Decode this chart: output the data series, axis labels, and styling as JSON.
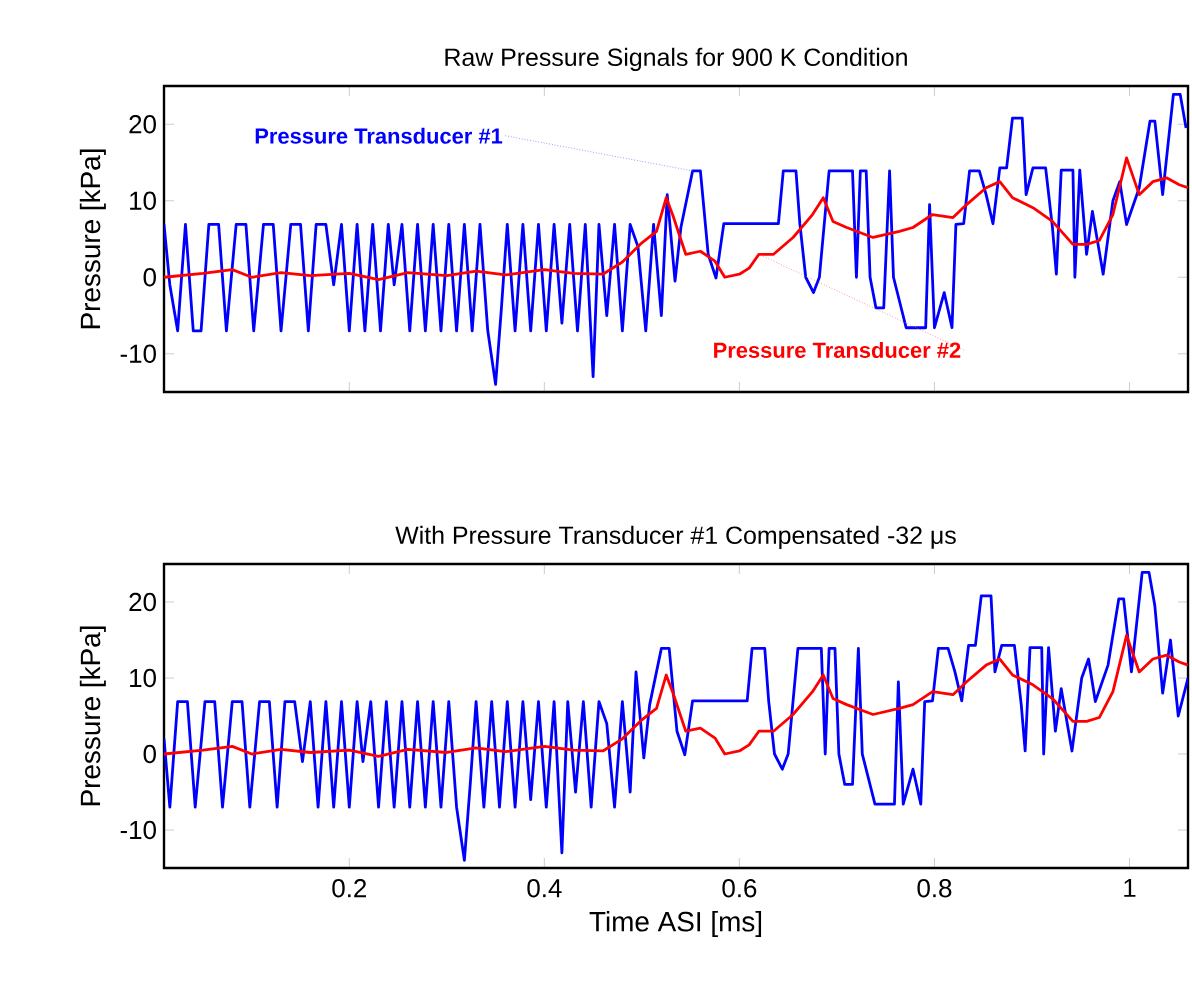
{
  "chart_data": [
    {
      "type": "line",
      "title": "Raw Pressure Signals for 900 K Condition",
      "ylabel": "Pressure [kPa]",
      "xlim": [
        0.01,
        1.06
      ],
      "ylim": [
        -15,
        25
      ],
      "xticks": [
        0.2,
        0.4,
        0.6,
        0.8,
        1
      ],
      "yticks": [
        -10,
        0,
        10,
        20
      ],
      "tick_labels": "y",
      "series": [
        {
          "name": "Pressure Transducer #1",
          "color": "#0000ff",
          "x": [
            0.01,
            0.016,
            0.024,
            0.032,
            0.04,
            0.048,
            0.056,
            0.066,
            0.074,
            0.084,
            0.094,
            0.102,
            0.112,
            0.122,
            0.13,
            0.14,
            0.15,
            0.158,
            0.166,
            0.176,
            0.184,
            0.192,
            0.2,
            0.208,
            0.216,
            0.224,
            0.232,
            0.24,
            0.246,
            0.254,
            0.262,
            0.27,
            0.278,
            0.286,
            0.294,
            0.302,
            0.31,
            0.318,
            0.326,
            0.334,
            0.342,
            0.35,
            0.356,
            0.362,
            0.37,
            0.378,
            0.386,
            0.394,
            0.402,
            0.41,
            0.418,
            0.426,
            0.434,
            0.442,
            0.45,
            0.456,
            0.464,
            0.472,
            0.48,
            0.488,
            0.496,
            0.504,
            0.512,
            0.52,
            0.526,
            0.534,
            0.54,
            0.552,
            0.56,
            0.568,
            0.576,
            0.584,
            0.64,
            0.645,
            0.658,
            0.662,
            0.668,
            0.676,
            0.682,
            0.692,
            0.716,
            0.72,
            0.724,
            0.73,
            0.734,
            0.74,
            0.748,
            0.754,
            0.758,
            0.771,
            0.791,
            0.795,
            0.8,
            0.81,
            0.818,
            0.822,
            0.83,
            0.836,
            0.846,
            0.853,
            0.86,
            0.867,
            0.874,
            0.88,
            0.89,
            0.894,
            0.901,
            0.914,
            0.921,
            0.925,
            0.93,
            0.942,
            0.944,
            0.949,
            0.956,
            0.962,
            0.973,
            0.983,
            0.99,
            0.997,
            1.01,
            1.021,
            1.026,
            1.034,
            1.045,
            1.052,
            1.058
          ],
          "values": [
            6.9,
            -1,
            -7,
            6.9,
            -7,
            -7,
            6.9,
            6.9,
            -7,
            6.9,
            6.9,
            -7,
            6.9,
            6.9,
            -7,
            6.9,
            6.9,
            -7,
            6.9,
            6.9,
            -1,
            6.9,
            -7,
            6.9,
            -7,
            6.9,
            -7,
            6.9,
            -1,
            6.9,
            -7,
            6.9,
            -7,
            6.9,
            -7,
            6.9,
            -7,
            6.9,
            -7,
            6.9,
            -7,
            -14,
            -4,
            6.9,
            -7,
            6.9,
            -7,
            6.9,
            -7,
            6.9,
            -6,
            6.9,
            -7,
            6.9,
            -13,
            6.9,
            -5,
            6.9,
            -7,
            6.9,
            4,
            -7,
            6.9,
            -5,
            10.8,
            -0.5,
            6.5,
            13.9,
            13.9,
            3,
            -0.1,
            7,
            7,
            13.9,
            13.9,
            7,
            0,
            -2,
            0,
            13.9,
            13.9,
            0,
            13.9,
            13.9,
            0,
            -4,
            -4,
            13.9,
            0,
            -6.6,
            -6.6,
            9.5,
            -6.6,
            -2,
            -6.6,
            6.9,
            7,
            13.9,
            13.9,
            10.8,
            7,
            14.3,
            14.3,
            20.8,
            20.8,
            10.8,
            14.3,
            14.3,
            6.5,
            0.4,
            14,
            14,
            0,
            14,
            3,
            8.6,
            0.4,
            10,
            12.5,
            6.9,
            11.7,
            20.4,
            20.4,
            10.8,
            23.9,
            23.9,
            19.5
          ]
        },
        {
          "name": "Pressure Transducer #2",
          "color": "#ff0000",
          "x": [
            0.01,
            0.05,
            0.08,
            0.1,
            0.13,
            0.16,
            0.2,
            0.23,
            0.26,
            0.3,
            0.33,
            0.36,
            0.4,
            0.43,
            0.46,
            0.48,
            0.5,
            0.515,
            0.525,
            0.532,
            0.545,
            0.56,
            0.575,
            0.585,
            0.6,
            0.61,
            0.62,
            0.635,
            0.655,
            0.675,
            0.686,
            0.696,
            0.71,
            0.737,
            0.764,
            0.778,
            0.798,
            0.819,
            0.833,
            0.853,
            0.867,
            0.88,
            0.901,
            0.921,
            0.942,
            0.956,
            0.969,
            0.983,
            0.997,
            1.01,
            1.024,
            1.038,
            1.051,
            1.06
          ],
          "values": [
            0,
            0.5,
            1,
            0,
            0.6,
            0.2,
            0.5,
            -0.3,
            0.6,
            0.2,
            0.8,
            0.3,
            1,
            0.5,
            0.4,
            2,
            4.5,
            6,
            10.4,
            8,
            3,
            3.4,
            2.1,
            0,
            0.4,
            1.2,
            3,
            3,
            5.2,
            8.2,
            10.4,
            7.3,
            6.5,
            5.2,
            6,
            6.5,
            8.2,
            7.8,
            9.5,
            11.7,
            12.5,
            10.4,
            9.1,
            7.3,
            4.3,
            4.3,
            4.8,
            8.2,
            15.6,
            10.8,
            12.5,
            13,
            12.1,
            11.7
          ]
        }
      ]
    },
    {
      "type": "line",
      "title": "With Pressure Transducer #1 Compensated -32 μs",
      "xlabel": "Time ASI [ms]",
      "ylabel": "Pressure [kPa]",
      "xlim": [
        0.01,
        1.06
      ],
      "ylim": [
        -15,
        25
      ],
      "xticks": [
        0.2,
        0.4,
        0.6,
        0.8,
        1
      ],
      "yticks": [
        -10,
        0,
        10,
        20
      ],
      "series": [
        {
          "color": "#0000ff",
          "x": [
            0.01,
            0.016,
            0.024,
            0.034,
            0.042,
            0.052,
            0.062,
            0.07,
            0.08,
            0.09,
            0.098,
            0.108,
            0.118,
            0.126,
            0.134,
            0.144,
            0.152,
            0.16,
            0.168,
            0.176,
            0.184,
            0.192,
            0.2,
            0.208,
            0.214,
            0.222,
            0.23,
            0.238,
            0.246,
            0.254,
            0.262,
            0.27,
            0.278,
            0.286,
            0.294,
            0.302,
            0.31,
            0.318,
            0.324,
            0.33,
            0.338,
            0.346,
            0.354,
            0.362,
            0.37,
            0.378,
            0.386,
            0.394,
            0.402,
            0.41,
            0.418,
            0.424,
            0.432,
            0.44,
            0.448,
            0.456,
            0.464,
            0.472,
            0.48,
            0.488,
            0.494,
            0.502,
            0.508,
            0.52,
            0.528,
            0.536,
            0.544,
            0.552,
            0.608,
            0.613,
            0.626,
            0.63,
            0.636,
            0.644,
            0.65,
            0.66,
            0.684,
            0.688,
            0.692,
            0.698,
            0.702,
            0.708,
            0.716,
            0.722,
            0.726,
            0.739,
            0.759,
            0.763,
            0.768,
            0.778,
            0.786,
            0.79,
            0.798,
            0.804,
            0.814,
            0.821,
            0.828,
            0.835,
            0.842,
            0.848,
            0.858,
            0.862,
            0.869,
            0.882,
            0.889,
            0.893,
            0.898,
            0.91,
            0.912,
            0.917,
            0.924,
            0.93,
            0.941,
            0.951,
            0.958,
            0.965,
            0.978,
            0.989,
            0.994,
            1.002,
            1.013,
            1.02,
            1.026,
            1.034,
            1.042,
            1.05,
            1.06
          ],
          "values": [
            2,
            -7,
            6.9,
            6.9,
            -7,
            6.9,
            6.9,
            -7,
            6.9,
            6.9,
            -7,
            6.9,
            6.9,
            -7,
            6.9,
            6.9,
            -1,
            6.9,
            -7,
            6.9,
            -7,
            6.9,
            -7,
            6.9,
            -1,
            6.9,
            -7,
            6.9,
            -7,
            6.9,
            -7,
            6.9,
            -7,
            6.9,
            -7,
            6.9,
            -7,
            -14,
            -4,
            6.9,
            -7,
            6.9,
            -7,
            6.9,
            -7,
            6.9,
            -6,
            6.9,
            -7,
            6.9,
            -13,
            6.9,
            -5,
            6.9,
            -7,
            6.9,
            4,
            -7,
            6.9,
            -5,
            10.8,
            -0.5,
            6.5,
            13.9,
            13.9,
            3,
            -0.1,
            7,
            7,
            13.9,
            13.9,
            7,
            0,
            -2,
            0,
            13.9,
            13.9,
            0,
            13.9,
            13.9,
            0,
            -4,
            -4,
            13.9,
            0,
            -6.6,
            -6.6,
            9.5,
            -6.6,
            -2,
            -6.6,
            6.9,
            7,
            13.9,
            13.9,
            10.8,
            7,
            14.3,
            14.3,
            20.8,
            20.8,
            10.8,
            14.3,
            14.3,
            6.5,
            0.4,
            14,
            14,
            0,
            14,
            3,
            8.6,
            0.4,
            10,
            12.5,
            6.9,
            11.7,
            20.4,
            20.4,
            10.8,
            23.9,
            23.9,
            19.5,
            8,
            15,
            5,
            10
          ]
        },
        {
          "color": "#ff0000",
          "x": [
            0.01,
            0.05,
            0.08,
            0.1,
            0.13,
            0.16,
            0.2,
            0.23,
            0.26,
            0.3,
            0.33,
            0.36,
            0.4,
            0.43,
            0.46,
            0.48,
            0.5,
            0.515,
            0.525,
            0.532,
            0.545,
            0.56,
            0.575,
            0.585,
            0.6,
            0.61,
            0.62,
            0.635,
            0.655,
            0.675,
            0.686,
            0.696,
            0.71,
            0.737,
            0.764,
            0.778,
            0.798,
            0.819,
            0.833,
            0.853,
            0.867,
            0.88,
            0.901,
            0.921,
            0.942,
            0.956,
            0.969,
            0.983,
            0.997,
            1.01,
            1.024,
            1.038,
            1.051,
            1.06
          ],
          "values": [
            0,
            0.5,
            1,
            0,
            0.6,
            0.2,
            0.5,
            -0.3,
            0.6,
            0.2,
            0.8,
            0.3,
            1,
            0.5,
            0.4,
            2,
            4.5,
            6,
            10.4,
            8,
            3,
            3.4,
            2.1,
            0,
            0.4,
            1.2,
            3,
            3,
            5.2,
            8.2,
            10.4,
            7.3,
            6.5,
            5.2,
            6,
            6.5,
            8.2,
            7.8,
            9.5,
            11.7,
            12.5,
            10.4,
            9.1,
            7.3,
            4.3,
            4.3,
            4.8,
            8.2,
            15.6,
            10.8,
            12.5,
            13,
            12.1,
            11.7
          ]
        }
      ]
    }
  ]
}
